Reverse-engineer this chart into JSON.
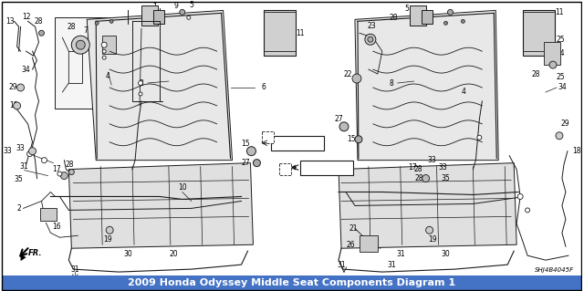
{
  "title": "2009 Honda Odyssey Middle Seat Components Diagram 1",
  "background_color": "#ffffff",
  "border_color": "#000000",
  "fig_width": 6.4,
  "fig_height": 3.19,
  "dpi": 100,
  "line_color": "#1a1a1a",
  "label_fontsize": 5.5,
  "title_fontsize": 8,
  "bottom_bar_color": "#4472c4",
  "bottom_text": "SHJ4B4045F",
  "bottom_text_color": "#000000",
  "border_linewidth": 1.0,
  "gray_bg": "#d8d8d8",
  "light_gray": "#e8e8e8",
  "part_gray": "#c0c0c0"
}
